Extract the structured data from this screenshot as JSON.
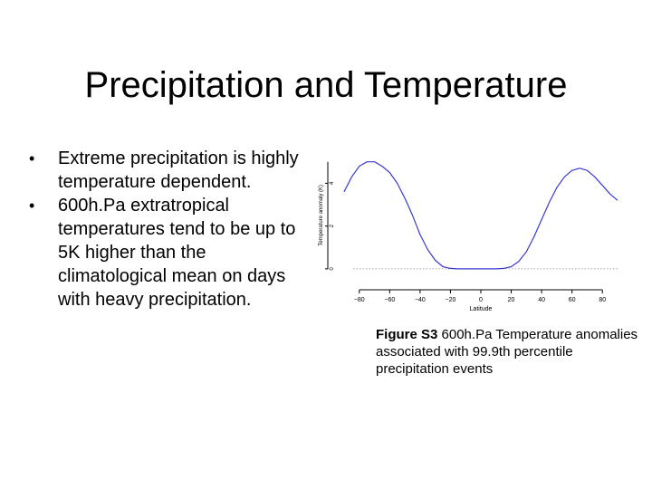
{
  "slide": {
    "title": "Precipitation and Temperature",
    "bullets": [
      "Extreme precipitation is highly temperature dependent.",
      "600h.Pa extratropical temperatures tend to be up to 5K higher than the climatological mean on days with heavy precipitation."
    ],
    "caption": {
      "label": "Figure S3",
      "text": " 600h.Pa Temperature anomalies associated with 99.9th percentile precipitation events"
    }
  },
  "chart_data": {
    "type": "line",
    "title": "",
    "xlabel": "Latitude",
    "ylabel": "Temperature anomaly (K)",
    "xlim": [
      -90,
      90
    ],
    "ylim": [
      -0.3,
      5.2
    ],
    "xticks": [
      -80,
      -60,
      -40,
      -20,
      0,
      20,
      40,
      60,
      80
    ],
    "yticks": [
      0,
      2,
      4
    ],
    "reference_line": 0,
    "line_color": "#3a3ad0",
    "series": [
      {
        "x": [
          -90,
          -85,
          -80,
          -75,
          -70,
          -65,
          -60,
          -55,
          -50,
          -45,
          -40,
          -35,
          -30,
          -25,
          -20,
          -15,
          -10,
          -5,
          0,
          5,
          10,
          15,
          20,
          25,
          30,
          35,
          40,
          45,
          50,
          55,
          60,
          65,
          70,
          75,
          80,
          85,
          90
        ],
        "y": [
          3.6,
          4.3,
          4.8,
          5.0,
          5.0,
          4.8,
          4.5,
          4.0,
          3.3,
          2.5,
          1.6,
          0.9,
          0.4,
          0.1,
          0.02,
          0.0,
          0.0,
          0.0,
          0.0,
          0.0,
          0.0,
          0.02,
          0.1,
          0.35,
          0.8,
          1.5,
          2.3,
          3.1,
          3.8,
          4.3,
          4.6,
          4.7,
          4.6,
          4.3,
          3.9,
          3.5,
          3.2
        ]
      }
    ]
  }
}
